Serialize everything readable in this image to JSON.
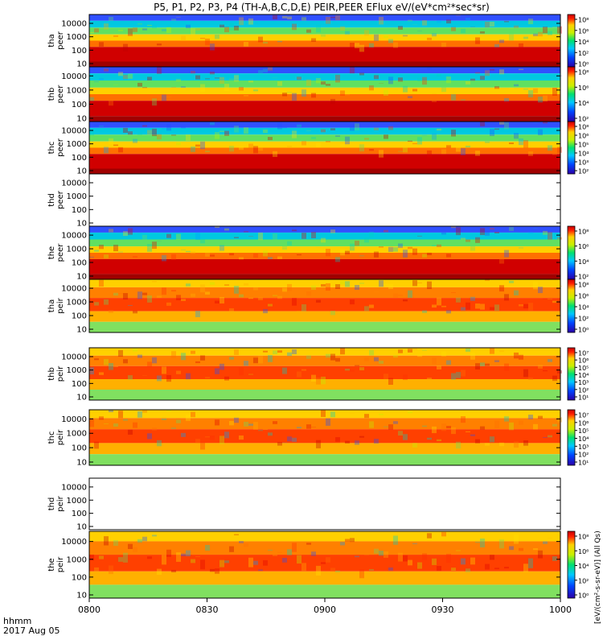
{
  "chart_data": {
    "type": "heatmap",
    "title": "P5, P1, P2, P3, P4 (TH-A,B,C,D,E) PEIR,PEER EFlux eV/(eV*cm²*sec*sr)",
    "x_label_hhmm": "hhmm",
    "x_label_date": "2017 Aug 05",
    "x_ticks": [
      "0800",
      "0830",
      "0900",
      "0930",
      "1000"
    ],
    "y_ticks": [
      "10",
      "100",
      "1000",
      "10000"
    ],
    "colorbar_unit_label": "[eV/(cm²-s-sr-eV)] (All Qs)",
    "panels": [
      {
        "probe": "tha",
        "species": "peer",
        "colorbar": [
          "10⁰",
          "10²",
          "10⁴",
          "10⁶",
          "10⁸"
        ],
        "has_data": true
      },
      {
        "probe": "thb",
        "species": "peer",
        "colorbar": [
          "10²",
          "10⁴",
          "10⁶",
          "10⁸"
        ],
        "has_data": true
      },
      {
        "probe": "thc",
        "species": "peer",
        "colorbar": [
          "10²",
          "10³",
          "10⁴",
          "10⁵",
          "10⁶",
          "10⁸"
        ],
        "has_data": true
      },
      {
        "probe": "thd",
        "species": "peer",
        "colorbar": [],
        "has_data": false
      },
      {
        "probe": "the",
        "species": "peer",
        "colorbar": [
          "10²",
          "10⁴",
          "10⁶",
          "10⁸"
        ],
        "has_data": true
      },
      {
        "probe": "tha",
        "species": "peir",
        "colorbar": [
          "10⁰",
          "10²",
          "10⁴",
          "10⁶",
          "10⁸"
        ],
        "has_data": true
      },
      {
        "probe": "thb",
        "species": "peir",
        "colorbar": [
          "10¹",
          "10²",
          "10³",
          "10⁴",
          "10⁵",
          "10⁶",
          "10⁷"
        ],
        "has_data": true
      },
      {
        "probe": "thc",
        "species": "peir",
        "colorbar": [
          "10¹",
          "10²",
          "10³",
          "10⁴",
          "10⁵",
          "10⁶",
          "10⁷"
        ],
        "has_data": true
      },
      {
        "probe": "thd",
        "species": "peir",
        "colorbar": [],
        "has_data": false
      },
      {
        "probe": "the",
        "species": "peir",
        "colorbar": [
          "10⁰",
          "10²",
          "10⁴",
          "10⁶",
          "10⁸"
        ],
        "has_data": true
      }
    ]
  }
}
